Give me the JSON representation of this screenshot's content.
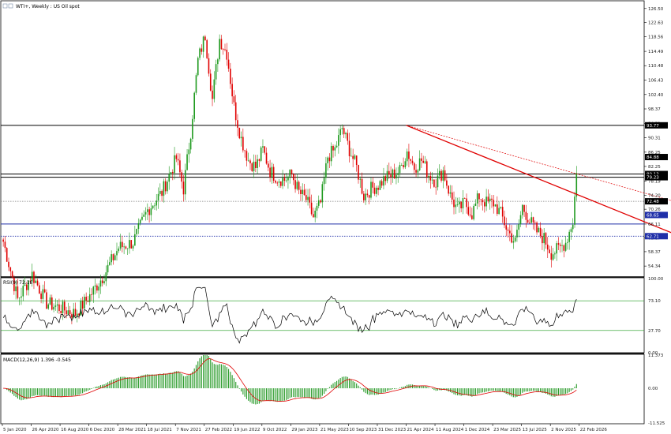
{
  "window": {
    "title": "WTI+, Weekly : US Oil spot"
  },
  "chart_data": [
    {
      "type": "candlestick",
      "panel": "price",
      "title": "WTI+, Weekly : US Oil spot",
      "price_ticks": [
        "126.50",
        "122.63",
        "118.56",
        "114.49",
        "110.48",
        "106.43",
        "102.40",
        "98.37",
        "94.31",
        "90.31",
        "86.25",
        "82.25",
        "78.19",
        "74.20",
        "70.26",
        "66.11",
        "62.17",
        "58.37",
        "54.34"
      ],
      "price_range": [
        51.5,
        128
      ],
      "current_price_label": "80.43",
      "level_tags": [
        {
          "price": 93.77,
          "label": "93.77",
          "style": "bg-black"
        },
        {
          "price": 84.88,
          "label": "84.88",
          "style": "bg-black"
        },
        {
          "price": 80.13,
          "label": "80.13",
          "style": "bg-black"
        },
        {
          "price": 79.23,
          "label": "79.23",
          "style": "bg-black"
        },
        {
          "price": 72.48,
          "label": "72.48",
          "style": "bg-black"
        },
        {
          "price": 68.65,
          "label": "68.65",
          "style": "bg-blue"
        },
        {
          "price": 62.71,
          "label": "62.71",
          "style": "bg-blue"
        }
      ],
      "horizontal_levels": [
        {
          "price": 93.77,
          "color": "#000000",
          "style": "solid"
        },
        {
          "price": 80.13,
          "color": "#000000",
          "style": "solid"
        },
        {
          "price": 79.23,
          "color": "#000000",
          "style": "solid"
        },
        {
          "price": 72.48,
          "color": "#808080",
          "style": "dotted"
        },
        {
          "price": 66.11,
          "color": "#1f2fa8",
          "style": "solid"
        },
        {
          "price": 62.71,
          "color": "#1f2fa8",
          "style": "dotted"
        }
      ],
      "trend_lines": [
        {
          "from": {
            "week": 224,
            "price": 93.77
          },
          "to": {
            "week": 398,
            "price": 58.2
          },
          "color": "#e00000",
          "style": "solid"
        },
        {
          "from": {
            "week": 224,
            "price": 93.77
          },
          "to": {
            "week": 382,
            "price": 71.1
          },
          "color": "#e00000",
          "style": "dotted"
        }
      ],
      "x_tick_labels": [
        "5 Jan 2020",
        "26 Apr 2020",
        "16 Aug 2020",
        "6 Dec 2020",
        "28 Mar 2021",
        "18 Jul 2021",
        "7 Nov 2021",
        "27 Feb 2022",
        "19 Jun 2022",
        "9 Oct 2022",
        "29 Jan 2023",
        "21 May 2023",
        "10 Sep 2023",
        "31 Dec 2023",
        "21 Apr 2024",
        "11 Aug 2024",
        "1 Dec 2024",
        "23 Mar 2025",
        "13 Jul 2025",
        "2 Nov 2025",
        "22 Feb 2026"
      ],
      "x_tick_weeks": [
        0,
        16,
        32,
        48,
        64,
        80,
        96,
        112,
        128,
        144,
        160,
        176,
        192,
        208,
        224,
        240,
        256,
        272,
        288,
        304,
        320
      ],
      "price_path": [
        [
          0,
          61.2
        ],
        [
          8,
          45
        ],
        [
          16,
          52
        ],
        [
          24,
          44
        ],
        [
          40,
          41
        ],
        [
          48,
          46
        ],
        [
          56,
          52
        ],
        [
          64,
          59.5
        ],
        [
          72,
          61
        ],
        [
          80,
          70
        ],
        [
          88,
          75
        ],
        [
          96,
          84.5
        ],
        [
          100,
          76
        ],
        [
          104,
          92
        ],
        [
          108,
          112
        ],
        [
          112,
          119
        ],
        [
          116,
          101
        ],
        [
          120,
          118
        ],
        [
          124,
          114
        ],
        [
          128,
          99
        ],
        [
          132,
          90
        ],
        [
          136,
          84
        ],
        [
          140,
          82
        ],
        [
          144,
          87
        ],
        [
          148,
          81
        ],
        [
          152,
          79
        ],
        [
          156,
          78.5
        ],
        [
          160,
          80
        ],
        [
          164,
          75
        ],
        [
          168,
          73
        ],
        [
          172,
          68
        ],
        [
          176,
          72
        ],
        [
          180,
          85
        ],
        [
          184,
          87
        ],
        [
          188,
          93
        ],
        [
          192,
          87
        ],
        [
          196,
          82
        ],
        [
          200,
          74
        ],
        [
          204,
          76
        ],
        [
          208,
          77
        ],
        [
          212,
          79
        ],
        [
          216,
          80
        ],
        [
          220,
          81
        ],
        [
          224,
          86.5
        ],
        [
          228,
          82
        ],
        [
          232,
          84
        ],
        [
          236,
          80
        ],
        [
          240,
          78
        ],
        [
          244,
          81
        ],
        [
          248,
          74
        ],
        [
          252,
          70
        ],
        [
          256,
          72
        ],
        [
          260,
          69
        ],
        [
          264,
          74
        ],
        [
          268,
          72
        ],
        [
          272,
          72
        ],
        [
          276,
          69
        ],
        [
          280,
          64
        ],
        [
          284,
          61
        ],
        [
          288,
          71
        ],
        [
          292,
          67
        ],
        [
          296,
          64
        ],
        [
          300,
          62
        ],
        [
          304,
          58
        ],
        [
          308,
          59
        ],
        [
          312,
          61
        ],
        [
          316,
          67
        ],
        [
          318,
          80.4
        ]
      ]
    },
    {
      "type": "line",
      "panel": "RSI",
      "title": "RSI(9) 72.16",
      "y_range": [
        0,
        100
      ],
      "tick_labels": [
        "100.00",
        "73.10",
        "27.70",
        "0.00"
      ],
      "levels": [
        70,
        30
      ],
      "level_color": "#1a9a1a",
      "color": "#000000",
      "last": 72.16
    },
    {
      "type": "bar",
      "panel": "MACD",
      "title": "MACD(12,26,9) 1.396 -0.545",
      "y_range": [
        -11.5,
        11
      ],
      "tick_labels": [
        "11.373",
        "0.00",
        "-11.525"
      ],
      "histogram_color": "#2c9c2c",
      "signal_color": "#e00000",
      "macd_last": 1.396,
      "signal_last": -0.545
    }
  ]
}
